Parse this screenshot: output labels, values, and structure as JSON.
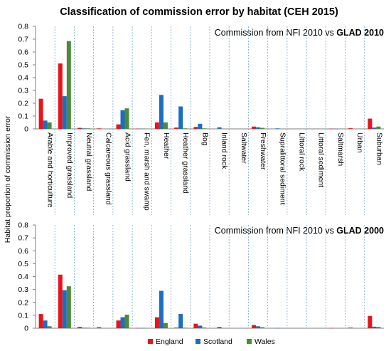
{
  "title": "Classification of commission error by habitat (CEH 2015)",
  "ylabel": "Habitat proportion of commission error",
  "legend": [
    "England",
    "Scotland",
    "Wales"
  ],
  "colors": {
    "England": "#e8141b",
    "Scotland": "#1a6fc0",
    "Wales": "#4e8a3a"
  },
  "chart_data": [
    {
      "type": "bar",
      "subtitle_prefix": "Commission from NFI 2010 vs ",
      "subtitle_bold": "GLAD 2010",
      "ylim": [
        0,
        0.8
      ],
      "yticks": [
        "0",
        "0.1",
        "0.2",
        "0.3",
        "0.4",
        "0.5",
        "0.6",
        "0.7",
        "0.8"
      ],
      "categories": [
        "Arable and horticulture",
        "Improved grassland",
        "Neutral grassland",
        "Calcareous grassland",
        "Acid grassland",
        "Fen, marsh and swamp",
        "Heather",
        "Heather grassland",
        "Bog",
        "Inland rock",
        "Saltwater",
        "Freshwater",
        "Supralittoral sediment",
        "Littoral rock",
        "Littoral sediment",
        "Saltmarsh",
        "Urban",
        "Suburban"
      ],
      "series": [
        {
          "name": "England",
          "values": [
            0.235,
            0.51,
            0.008,
            0.004,
            0.035,
            0.002,
            0.05,
            0.01,
            0.015,
            0.0,
            0.0,
            0.018,
            0.0,
            0.0,
            0.0,
            0.002,
            0.005,
            0.08
          ]
        },
        {
          "name": "Scotland",
          "values": [
            0.065,
            0.255,
            0.004,
            0.0,
            0.145,
            0.002,
            0.265,
            0.175,
            0.04,
            0.012,
            0.0,
            0.012,
            0.004,
            0.0,
            0.0,
            0.002,
            0.0,
            0.01
          ]
        },
        {
          "name": "Wales",
          "values": [
            0.05,
            0.685,
            0.004,
            0.0,
            0.16,
            0.002,
            0.05,
            0.004,
            0.004,
            0.0,
            0.0,
            0.008,
            0.0,
            0.0,
            0.0,
            0.0,
            0.0,
            0.018
          ]
        }
      ]
    },
    {
      "type": "bar",
      "subtitle_prefix": "Commission from NFI 2010 vs ",
      "subtitle_bold": "GLAD 2000",
      "ylim": [
        0,
        0.8
      ],
      "yticks": [
        "0",
        "0.1",
        "0.2",
        "0.3",
        "0.4",
        "0.5",
        "0.6",
        "0.7",
        "0.8"
      ],
      "categories": [
        "Arable and horticulture",
        "Improved grassland",
        "Neutral grassland",
        "Calcareous grassland",
        "Acid grassland",
        "Fen, marsh and swamp",
        "Heather",
        "Heather grassland",
        "Bog",
        "Inland rock",
        "Saltwater",
        "Freshwater",
        "Supralittoral sediment",
        "Littoral rock",
        "Littoral sediment",
        "Saltmarsh",
        "Urban",
        "Suburban"
      ],
      "series": [
        {
          "name": "England",
          "values": [
            0.11,
            0.415,
            0.01,
            0.008,
            0.06,
            0.002,
            0.085,
            0.005,
            0.035,
            0.0,
            0.0,
            0.025,
            0.0,
            0.0,
            0.0,
            0.002,
            0.005,
            0.095
          ]
        },
        {
          "name": "Scotland",
          "values": [
            0.06,
            0.295,
            0.004,
            0.0,
            0.085,
            0.002,
            0.29,
            0.11,
            0.02,
            0.01,
            0.0,
            0.015,
            0.002,
            0.0,
            0.0,
            0.0,
            0.0,
            0.012
          ]
        },
        {
          "name": "Wales",
          "values": [
            0.015,
            0.325,
            0.004,
            0.0,
            0.105,
            0.002,
            0.04,
            0.004,
            0.005,
            0.0,
            0.0,
            0.008,
            0.0,
            0.0,
            0.0,
            0.0,
            0.0,
            0.01
          ]
        }
      ]
    }
  ]
}
